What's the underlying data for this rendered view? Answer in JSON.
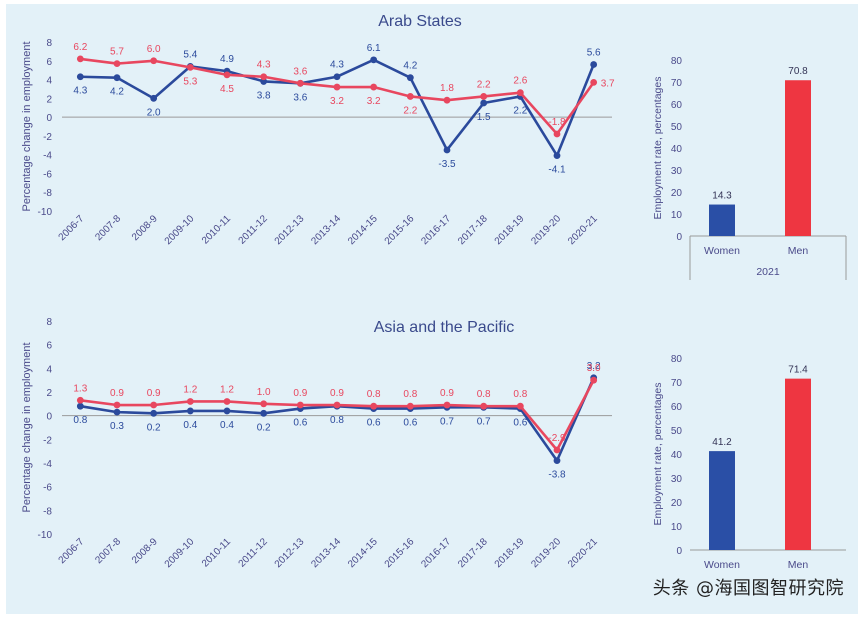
{
  "colors": {
    "women": "#2b4a9c",
    "men": "#e8475f",
    "bar_women": "#2a4fa6",
    "bar_men": "#ee3641",
    "title": "#3a4a8c",
    "axis_text": "#4a4a8a",
    "background": "#e3f1f8"
  },
  "watermark": "头条 @海国图智研究院",
  "chart_data": [
    {
      "id": "arab-line",
      "type": "line",
      "title": "Arab States",
      "ylabel": "Percentage change in employment",
      "ylim": [
        -10,
        8
      ],
      "yticks": [
        "8",
        "6",
        "4",
        "2",
        "0",
        "-2",
        "-4",
        "-6",
        "-8",
        "-10"
      ],
      "categories": [
        "2006-7",
        "2007-8",
        "2008-9",
        "2009-10",
        "2010-11",
        "2011-12",
        "2012-13",
        "2013-14",
        "2014-15",
        "2015-16",
        "2016-17",
        "2017-18",
        "2018-19",
        "2019-20",
        "2020-21"
      ],
      "series": [
        {
          "color": "#2b4a9c",
          "values": [
            4.3,
            4.2,
            2.0,
            5.4,
            4.9,
            3.8,
            3.6,
            4.3,
            6.1,
            4.2,
            -3.5,
            1.5,
            2.2,
            -4.1,
            5.6
          ],
          "labels": [
            "4.3",
            "4.2",
            "2.0",
            "5.4",
            "4.9",
            "3.8",
            "3.6",
            "4.3",
            "6.1",
            "4.2",
            "-3.5",
            "1.5",
            "2.2",
            "-4.1",
            "5.6"
          ]
        },
        {
          "color": "#e8475f",
          "values": [
            6.2,
            5.7,
            6.0,
            5.3,
            4.5,
            4.3,
            3.6,
            3.2,
            3.2,
            2.2,
            1.8,
            2.2,
            2.6,
            -1.8,
            3.7
          ],
          "labels": [
            "6.2",
            "5.7",
            "6.0",
            "5.3",
            "4.5",
            "4.3",
            "3.6",
            "3.2",
            "3.2",
            "2.2",
            "1.8",
            "2.2",
            "2.6",
            "-1.8",
            "3.7"
          ]
        }
      ]
    },
    {
      "id": "arab-bar",
      "type": "bar",
      "ylabel": "Employment rate, percentages",
      "ylim": [
        0,
        80
      ],
      "yticks": [
        "80",
        "70",
        "60",
        "50",
        "40",
        "30",
        "20",
        "10",
        "0"
      ],
      "categories": [
        "Women",
        "Men"
      ],
      "values": [
        14.3,
        70.8
      ],
      "labels": [
        "14.3",
        "70.8"
      ],
      "group_label": "2021"
    },
    {
      "id": "asia-line",
      "type": "line",
      "title": "Asia and the Pacific",
      "ylabel": "Percentage change in employment",
      "ylim": [
        -10,
        8
      ],
      "yticks": [
        "8",
        "6",
        "4",
        "2",
        "0",
        "-2",
        "-4",
        "-6",
        "-8",
        "-10"
      ],
      "categories": [
        "2006-7",
        "2007-8",
        "2008-9",
        "2009-10",
        "2010-11",
        "2011-12",
        "2012-13",
        "2013-14",
        "2014-15",
        "2015-16",
        "2016-17",
        "2017-18",
        "2018-19",
        "2019-20",
        "2020-21"
      ],
      "series": [
        {
          "color": "#2b4a9c",
          "values": [
            0.8,
            0.3,
            0.2,
            0.4,
            0.4,
            0.2,
            0.6,
            0.8,
            0.6,
            0.6,
            0.7,
            0.7,
            0.6,
            -3.8,
            3.2
          ],
          "labels": [
            "0.8",
            "0.3",
            "0.2",
            "0.4",
            "0.4",
            "0.2",
            "0.6",
            "0.8",
            "0.6",
            "0.6",
            "0.7",
            "0.7",
            "0.6",
            "-3.8",
            "3.2"
          ]
        },
        {
          "color": "#e8475f",
          "values": [
            1.3,
            0.9,
            0.9,
            1.2,
            1.2,
            1.0,
            0.9,
            0.9,
            0.8,
            0.8,
            0.9,
            0.8,
            0.8,
            -2.9,
            3.0
          ],
          "labels": [
            "1.3",
            "0.9",
            "0.9",
            "1.2",
            "1.2",
            "1.0",
            "0.9",
            "0.9",
            "0.8",
            "0.8",
            "0.9",
            "0.8",
            "0.8",
            "-2.9",
            "3.0"
          ]
        }
      ]
    },
    {
      "id": "asia-bar",
      "type": "bar",
      "ylabel": "Employment rate, percentages",
      "ylim": [
        0,
        80
      ],
      "yticks": [
        "80",
        "70",
        "60",
        "50",
        "40",
        "30",
        "20",
        "10",
        "0"
      ],
      "categories": [
        "Women",
        "Men"
      ],
      "values": [
        41.2,
        71.4
      ],
      "labels": [
        "41.2",
        "71.4"
      ]
    }
  ]
}
